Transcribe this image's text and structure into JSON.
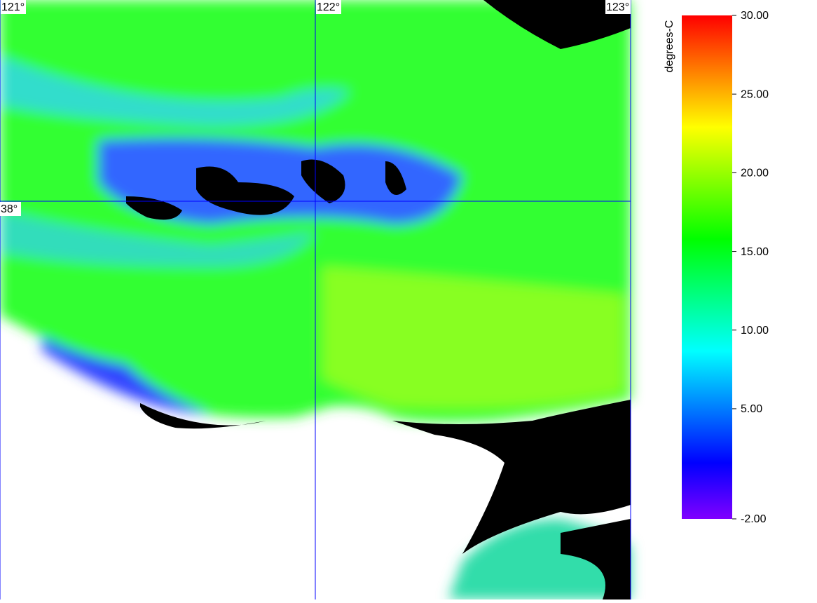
{
  "map": {
    "lon_ticks": [
      {
        "value": 121,
        "label": "121°"
      },
      {
        "value": 122,
        "label": "122°"
      },
      {
        "value": 123,
        "label": "123°"
      }
    ],
    "lat_ticks": [
      {
        "value": 38,
        "label": "38°"
      }
    ],
    "grid_color": "#0000ff"
  },
  "colorbar": {
    "label": "degrees-C",
    "lim": [
      -2,
      30
    ],
    "ticks": [
      {
        "value": -2,
        "label": "-2.00"
      },
      {
        "value": 5,
        "label": "5.00"
      },
      {
        "value": 10,
        "label": "10.00"
      },
      {
        "value": 15,
        "label": "15.00"
      },
      {
        "value": 20,
        "label": "20.00"
      },
      {
        "value": 25,
        "label": "25.00"
      },
      {
        "value": 30,
        "label": "30.00"
      }
    ],
    "colors": [
      "#8000ff",
      "#0000ff",
      "#0080ff",
      "#00ffff",
      "#00ff80",
      "#00ff00",
      "#80ff00",
      "#ffff00",
      "#ff8000",
      "#ff0000"
    ]
  }
}
